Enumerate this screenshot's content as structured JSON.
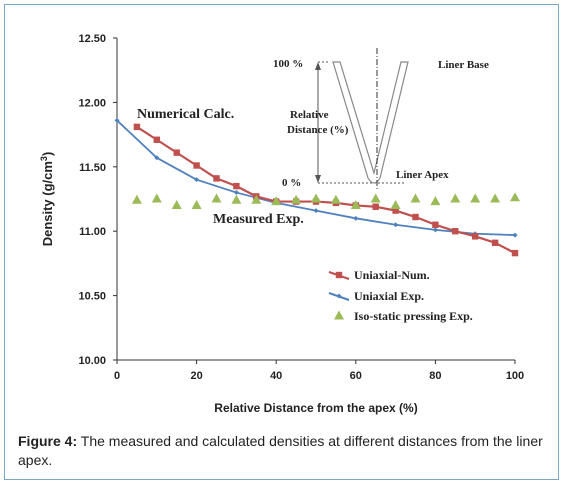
{
  "chart_data": {
    "type": "line",
    "xlabel": "Relative Distance from the apex (%)",
    "ylabel": "Density (g/cm",
    "ylabel_sup": "3",
    "ylabel_end": ")",
    "xlim": [
      0,
      100
    ],
    "ylim": [
      10.0,
      12.5
    ],
    "x_ticks": [
      0,
      20,
      40,
      60,
      80,
      100
    ],
    "y_ticks": [
      "10.00",
      "10.50",
      "11.00",
      "11.50",
      "12.00",
      "12.50"
    ],
    "grid": false,
    "legend_position": "lower-right",
    "series": [
      {
        "name": "Uniaxial-Num.",
        "color": "#c0504d",
        "marker": "square",
        "x": [
          5,
          10,
          15,
          20,
          25,
          30,
          35,
          40,
          45,
          50,
          55,
          60,
          65,
          70,
          75,
          80,
          85,
          90,
          95,
          100
        ],
        "y": [
          11.81,
          11.71,
          11.61,
          11.51,
          11.41,
          11.35,
          11.27,
          11.23,
          11.23,
          11.23,
          11.22,
          11.2,
          11.19,
          11.16,
          11.11,
          11.05,
          11.0,
          10.96,
          10.91,
          10.83
        ]
      },
      {
        "name": "Uniaxial Exp.",
        "color": "#4f81bd",
        "marker": "diamond",
        "x": [
          0,
          10,
          20,
          30,
          40,
          50,
          60,
          70,
          80,
          90,
          100
        ],
        "y": [
          11.86,
          11.57,
          11.4,
          11.3,
          11.22,
          11.16,
          11.1,
          11.05,
          11.01,
          10.98,
          10.97
        ]
      },
      {
        "name": "Iso-static pressing Exp.",
        "color": "#9bbb59",
        "marker": "triangle",
        "x": [
          5,
          10,
          15,
          20,
          25,
          30,
          35,
          40,
          45,
          50,
          55,
          60,
          65,
          70,
          75,
          80,
          85,
          90,
          95,
          100
        ],
        "y": [
          11.24,
          11.25,
          11.2,
          11.2,
          11.25,
          11.24,
          11.24,
          11.23,
          11.24,
          11.25,
          11.24,
          11.2,
          11.25,
          11.2,
          11.25,
          11.23,
          11.25,
          11.25,
          11.25,
          11.26
        ]
      }
    ],
    "annotations": {
      "numerical": "Numerical Calc.",
      "measured": "Measured Exp."
    },
    "inset": {
      "top_label": "100 %",
      "bottom_label": "0 %",
      "base_label": "Liner Base",
      "apex_label": "Liner Apex",
      "relative_label_1": "Relative",
      "relative_label_2": "Distance (%)"
    }
  },
  "caption": {
    "figure_label": "Figure 4:",
    "text": " The measured and calculated densities at different distances from the liner apex."
  }
}
